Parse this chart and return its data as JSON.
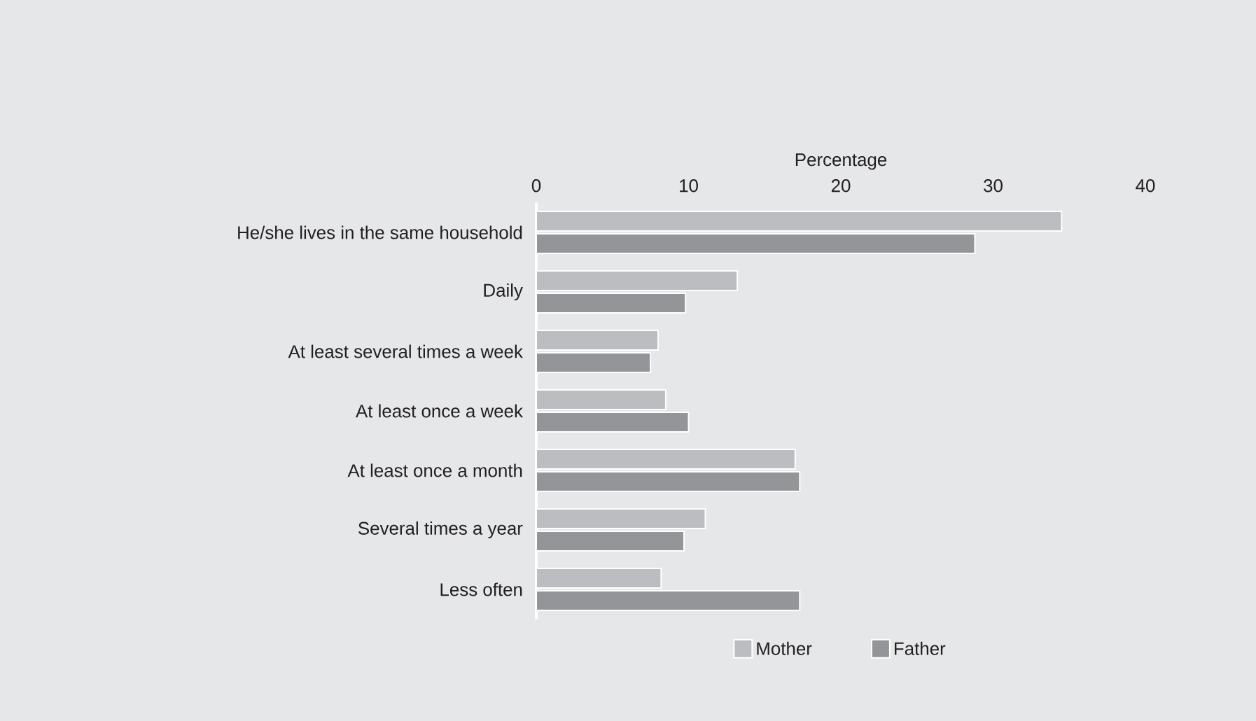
{
  "chart_data": {
    "type": "bar",
    "orientation": "horizontal",
    "xlabel": "Percentage",
    "categories": [
      "He/she lives in the same household",
      "Daily",
      "At least several times a week",
      "At least once a week",
      "At least once a month",
      "Several times a year",
      "Less often"
    ],
    "series": [
      {
        "name": "Mother",
        "color": "#bcbdc0",
        "values": [
          34.5,
          13.2,
          8.0,
          8.5,
          17.0,
          11.1,
          8.2
        ]
      },
      {
        "name": "Father",
        "color": "#939598",
        "values": [
          28.8,
          9.8,
          7.5,
          10.0,
          17.3,
          9.7,
          17.3
        ]
      }
    ],
    "xlim": [
      0,
      40
    ],
    "xticks": [
      0,
      10,
      20,
      30,
      40
    ],
    "legend": "bottom"
  }
}
